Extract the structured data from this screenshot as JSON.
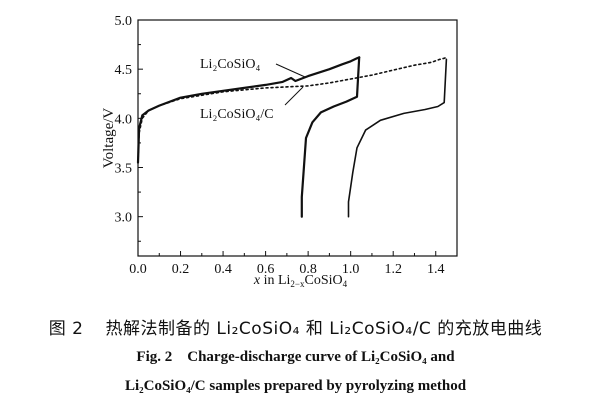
{
  "chart_data": {
    "type": "line",
    "xlabel": "x in Li2-xCoSiO4",
    "ylabel": "Voltage/V",
    "xlim": [
      0,
      1.5
    ],
    "ylim": [
      2.6,
      5.0
    ],
    "x_ticks": [
      "0.0",
      "0.2",
      "0.4",
      "0.6",
      "0.8",
      "1.0",
      "1.2",
      "1.4"
    ],
    "y_ticks": [
      "3.0",
      "3.5",
      "4.0",
      "4.5",
      "5.0"
    ],
    "grid": false,
    "series": [
      {
        "name": "Li2CoSiO4",
        "style": "solid",
        "charge": {
          "x": [
            0.0,
            0.005,
            0.02,
            0.05,
            0.1,
            0.2,
            0.3,
            0.4,
            0.5,
            0.6,
            0.68,
            0.72,
            0.74,
            0.8,
            0.9,
            0.96,
            1.0,
            1.02,
            1.03,
            1.04
          ],
          "y": [
            3.55,
            3.9,
            4.03,
            4.08,
            4.13,
            4.21,
            4.25,
            4.28,
            4.31,
            4.34,
            4.37,
            4.41,
            4.38,
            4.43,
            4.5,
            4.55,
            4.58,
            4.6,
            4.61,
            4.62
          ]
        },
        "discharge": {
          "x": [
            1.04,
            1.03,
            0.98,
            0.92,
            0.86,
            0.82,
            0.79,
            0.78,
            0.77,
            0.77
          ],
          "y": [
            4.62,
            4.22,
            4.17,
            4.12,
            4.06,
            3.96,
            3.8,
            3.5,
            3.2,
            3.0
          ]
        }
      },
      {
        "name": "Li2CoSiO4/C",
        "style": "dotted",
        "charge": {
          "x": [
            0.0,
            0.005,
            0.02,
            0.05,
            0.1,
            0.2,
            0.4,
            0.6,
            0.8,
            0.9,
            1.0,
            1.1,
            1.2,
            1.3,
            1.38,
            1.42,
            1.44,
            1.45
          ],
          "y": [
            3.55,
            3.85,
            4.0,
            4.08,
            4.13,
            4.2,
            4.27,
            4.31,
            4.33,
            4.36,
            4.4,
            4.44,
            4.49,
            4.54,
            4.57,
            4.6,
            4.61,
            4.62
          ]
        },
        "discharge": {
          "x": [
            1.45,
            1.44,
            1.41,
            1.35,
            1.25,
            1.14,
            1.07,
            1.03,
            1.01,
            0.99,
            0.99
          ],
          "y": [
            4.6,
            4.16,
            4.12,
            4.09,
            4.05,
            3.98,
            3.88,
            3.7,
            3.45,
            3.15,
            3.0
          ]
        }
      }
    ],
    "annotations": {
      "label1": "Li₂CoSiO₄",
      "label2": "Li₂CoSiO₄/C"
    }
  },
  "caption": {
    "cn_label": "图 2",
    "cn_text": "热解法制备的 Li₂CoSiO₄ 和 Li₂CoSiO₄/C 的充放电曲线",
    "en_line1": "Fig. 2    Charge-discharge curve of Li₂CoSiO₄ and",
    "en_line2": "Li₂CoSiO₄/C samples prepared by pyrolyzing method"
  }
}
